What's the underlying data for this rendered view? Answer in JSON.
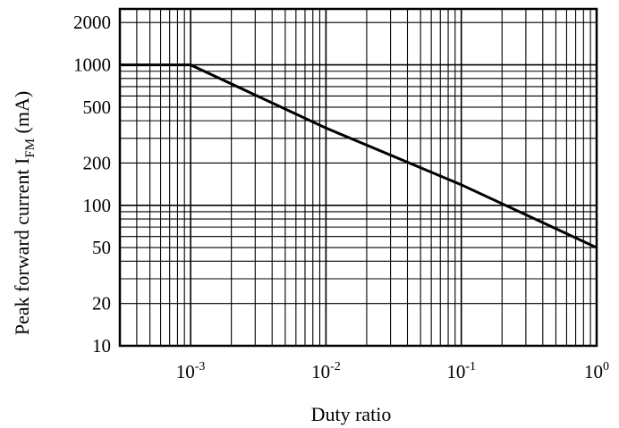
{
  "chart_data": {
    "type": "line",
    "title": "",
    "xlabel": "Duty ratio",
    "ylabel": {
      "prefix": "Peak forward current I",
      "subscript": "FM",
      "suffix": " (mA)"
    },
    "x_scale": "log",
    "y_scale": "log",
    "xlim": [
      0.0003,
      1
    ],
    "ylim": [
      10,
      2500
    ],
    "grid": true,
    "legend": "none",
    "x_ticks": [
      {
        "value": 0.001,
        "base": "10",
        "exponent": "-3"
      },
      {
        "value": 0.01,
        "base": "10",
        "exponent": "-2"
      },
      {
        "value": 0.1,
        "base": "10",
        "exponent": "-1"
      },
      {
        "value": 1,
        "base": "10",
        "exponent": "0"
      }
    ],
    "y_ticks": [
      {
        "value": 10,
        "label": "10"
      },
      {
        "value": 20,
        "label": "20"
      },
      {
        "value": 50,
        "label": "50"
      },
      {
        "value": 100,
        "label": "100"
      },
      {
        "value": 200,
        "label": "200"
      },
      {
        "value": 500,
        "label": "500"
      },
      {
        "value": 1000,
        "label": "1000"
      },
      {
        "value": 2000,
        "label": "2000"
      }
    ],
    "series": [
      {
        "x": [
          0.0003,
          0.001,
          0.01,
          0.1,
          1
        ],
        "y": [
          1000,
          1000,
          355,
          140,
          50
        ]
      }
    ],
    "colors": {
      "line": "#000000",
      "grid": "#000000",
      "background": "#ffffff"
    }
  }
}
